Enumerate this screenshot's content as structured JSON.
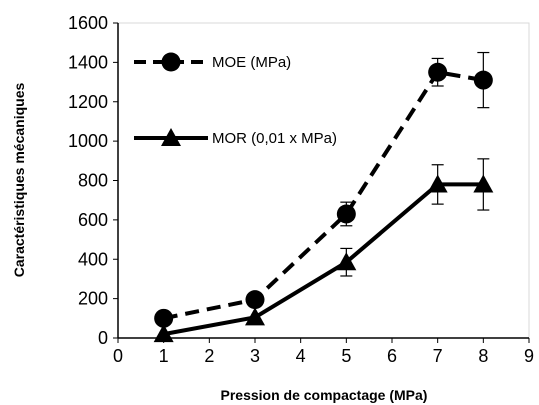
{
  "chart_data": {
    "type": "line",
    "xlabel": "Pression de compactage  (MPa)",
    "ylabel": "Caractéristiques mécaniques",
    "xlim": [
      0,
      9
    ],
    "ylim": [
      0,
      1600
    ],
    "x_ticks": [
      0,
      1,
      2,
      3,
      4,
      5,
      6,
      7,
      8,
      9
    ],
    "y_ticks": [
      0,
      200,
      400,
      600,
      800,
      1000,
      1200,
      1400,
      1600
    ],
    "grid": false,
    "legend_placement": "top-left",
    "series": [
      {
        "name": "MOE (MPa)",
        "line_style": "dashed",
        "marker": "circle",
        "color": "#000000",
        "x": [
          1,
          3,
          5,
          7,
          8
        ],
        "y": [
          100,
          195,
          630,
          1350,
          1310
        ],
        "error": [
          null,
          null,
          60,
          70,
          140
        ]
      },
      {
        "name": "MOR (0,01 x MPa)",
        "line_style": "solid",
        "marker": "triangle",
        "color": "#000000",
        "x": [
          1,
          3,
          5,
          7,
          8
        ],
        "y": [
          20,
          105,
          385,
          780,
          780
        ],
        "error": [
          null,
          null,
          70,
          100,
          130
        ]
      }
    ]
  }
}
